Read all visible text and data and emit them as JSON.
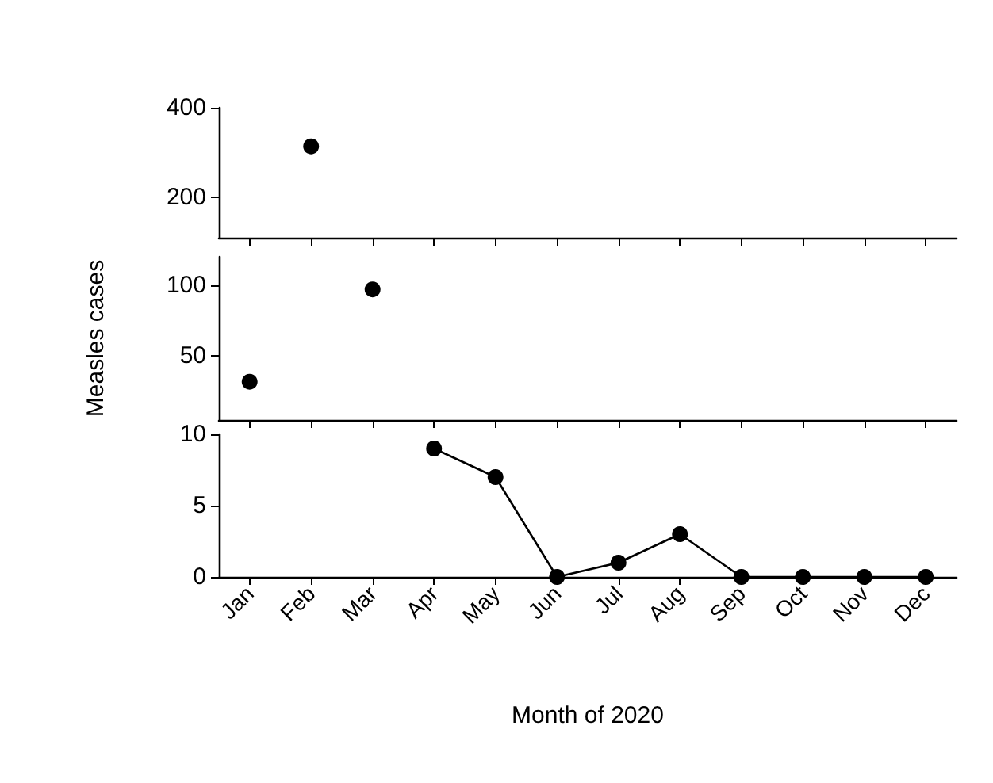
{
  "chart_data": [
    {
      "type": "scatter",
      "categories": [
        null,
        null,
        null,
        null,
        null,
        null,
        null,
        null,
        null,
        null,
        null,
        null
      ],
      "series": [
        {
          "color": "#000000",
          "values": [
            null,
            314,
            null,
            null,
            null,
            null,
            null,
            null,
            null,
            null,
            null,
            null
          ]
        }
      ],
      "ylim": [
        110,
        400
      ],
      "yticks": [
        200,
        400
      ],
      "marker": "circle",
      "tick_labels": "y"
    },
    {
      "type": "scatter",
      "ylabel": "Measles cases",
      "categories": [
        null,
        null,
        null,
        null,
        null,
        null,
        null,
        null,
        null,
        null,
        null,
        null
      ],
      "series": [
        {
          "color": "#000000",
          "values": [
            32,
            null,
            97,
            null,
            null,
            null,
            null,
            null,
            null,
            null,
            null,
            null
          ]
        }
      ],
      "ylim": [
        5,
        120
      ],
      "yticks": [
        50,
        100
      ],
      "marker": "circle",
      "tick_labels": "y"
    },
    {
      "type": "line",
      "xlabel": "Month of 2020",
      "categories": [
        "Jan",
        "Feb",
        "Mar",
        "Apr",
        "May",
        "Jun",
        "Jul",
        "Aug",
        "Sep",
        "Oct",
        "Nov",
        "Dec"
      ],
      "series": [
        {
          "color": "#000000",
          "values": [
            null,
            null,
            null,
            9,
            7,
            0,
            1,
            3,
            0,
            0,
            0,
            0
          ]
        }
      ],
      "ylim": [
        0,
        10
      ],
      "yticks": [
        0,
        5,
        10
      ],
      "marker": "circle",
      "line_style": "solid"
    }
  ]
}
